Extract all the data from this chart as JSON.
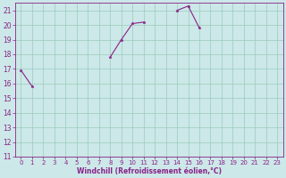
{
  "xlabel": "Windchill (Refroidissement éolien,°C)",
  "xlim": [
    -0.5,
    23.5
  ],
  "ylim": [
    11,
    21.5
  ],
  "yticks": [
    11,
    12,
    13,
    14,
    15,
    16,
    17,
    18,
    19,
    20,
    21
  ],
  "xticks": [
    0,
    1,
    2,
    3,
    4,
    5,
    6,
    7,
    8,
    9,
    10,
    11,
    12,
    13,
    14,
    15,
    16,
    17,
    18,
    19,
    20,
    21,
    22,
    23
  ],
  "bg_color": "#cce8e8",
  "line_color": "#882288",
  "grid_color": "#99ccbb",
  "lines": [
    {
      "x": [
        0,
        1,
        2,
        3,
        4,
        5,
        6,
        7,
        8,
        9,
        10,
        11,
        12,
        13,
        14,
        15,
        16,
        17,
        18,
        19,
        20,
        21,
        22,
        23
      ],
      "y": [
        16.9,
        15.8,
        null,
        null,
        null,
        null,
        null,
        null,
        17.8,
        19.0,
        20.1,
        20.2,
        null,
        null,
        21.0,
        21.3,
        19.8,
        null,
        null,
        null,
        null,
        null,
        null,
        null
      ]
    },
    {
      "x": [
        0,
        1,
        2,
        3,
        4,
        5,
        6,
        7,
        8,
        9,
        10,
        11,
        12,
        13,
        14,
        15,
        16,
        17,
        18,
        19,
        20,
        21,
        22,
        23
      ],
      "y": [
        null,
        null,
        null,
        null,
        null,
        null,
        null,
        null,
        null,
        null,
        null,
        null,
        null,
        null,
        null,
        null,
        null,
        null,
        null,
        null,
        null,
        null,
        null,
        null
      ]
    }
  ]
}
